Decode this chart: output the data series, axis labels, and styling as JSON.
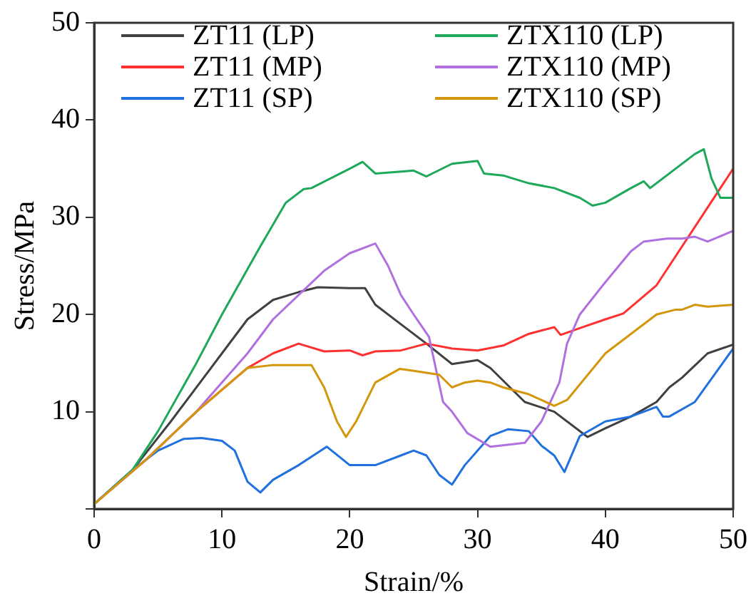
{
  "chart_data": {
    "type": "line",
    "xlabel": "Strain/%",
    "ylabel": "Stress/MPa",
    "xlim": [
      0,
      50
    ],
    "ylim": [
      0,
      50
    ],
    "xticks": [
      0,
      10,
      20,
      30,
      40,
      50
    ],
    "yticks": [
      {
        "value": 0,
        "label": null
      },
      10,
      20,
      30,
      40,
      50
    ],
    "grid": false,
    "legend": "top",
    "marker": "none",
    "line_style": "solid",
    "series": [
      {
        "name": "ZT11 (LP)",
        "color": "#404040",
        "x": [
          0,
          3,
          6,
          10,
          12,
          14,
          16,
          17.5,
          20,
          21.2,
          22,
          24,
          26,
          28,
          30,
          31,
          32,
          33.7,
          36,
          38.6,
          40,
          42,
          44,
          45,
          46,
          48,
          50
        ],
        "values": [
          0.5,
          4,
          9,
          16,
          19.5,
          21.5,
          22.3,
          22.8,
          22.7,
          22.7,
          21,
          19,
          17,
          14.9,
          15.3,
          14.5,
          13.2,
          11,
          10,
          7.4,
          8.3,
          9.5,
          11,
          12.5,
          13.5,
          16,
          16.9
        ]
      },
      {
        "name": "ZT11 (MP)",
        "color": "#ff3030",
        "x": [
          0,
          4,
          8,
          12,
          14,
          16,
          18,
          20,
          21,
          22,
          24,
          26,
          28,
          30,
          32,
          34,
          36,
          36.5,
          38,
          40,
          41.4,
          44,
          46,
          48,
          50
        ],
        "values": [
          0.5,
          5,
          10,
          14.5,
          16,
          17,
          16.2,
          16.3,
          15.8,
          16.2,
          16.3,
          17,
          16.5,
          16.3,
          16.8,
          18,
          18.7,
          17.9,
          18.6,
          19.5,
          20.1,
          23,
          27,
          31,
          35
        ]
      },
      {
        "name": "ZT11 (SP)",
        "color": "#2070e0",
        "x": [
          0,
          3,
          5,
          7,
          8.4,
          10,
          11,
          12,
          13,
          14,
          16,
          18.2,
          20,
          22,
          24,
          25,
          26,
          27,
          28,
          29,
          31,
          32.4,
          34,
          35,
          36,
          36.8,
          38,
          40,
          42,
          43,
          44,
          44.5,
          45,
          47,
          50
        ],
        "values": [
          0.5,
          4,
          6,
          7.2,
          7.3,
          7,
          6,
          2.8,
          1.7,
          3,
          4.5,
          6.4,
          4.5,
          4.5,
          5.5,
          6,
          5.5,
          3.5,
          2.5,
          4.5,
          7.5,
          8.2,
          8,
          6.5,
          5.5,
          3.8,
          7.5,
          9,
          9.5,
          10,
          10.5,
          9.5,
          9.5,
          11,
          16.5
        ]
      },
      {
        "name": "ZTX110 (LP)",
        "color": "#1ea85a",
        "x": [
          0,
          3,
          5,
          8,
          10,
          13,
          15,
          16.4,
          17,
          20,
          21,
          22,
          24,
          25,
          26,
          28,
          30,
          30.5,
          32,
          34,
          36,
          38,
          39,
          40,
          42,
          43,
          43.5,
          45,
          47,
          47.7,
          48.3,
          49,
          50
        ],
        "values": [
          0.5,
          4,
          8,
          15,
          20,
          27,
          31.5,
          32.9,
          33,
          35,
          35.7,
          34.5,
          34.7,
          34.8,
          34.2,
          35.5,
          35.8,
          34.5,
          34.3,
          33.5,
          33,
          32,
          31.2,
          31.5,
          33,
          33.7,
          33,
          34.5,
          36.5,
          37,
          34,
          32,
          32
        ]
      },
      {
        "name": "ZTX110 (MP)",
        "color": "#b070e0",
        "x": [
          0,
          4,
          8,
          12,
          14,
          16,
          18,
          20,
          22,
          23,
          24,
          25,
          26.2,
          27.3,
          28,
          29.2,
          31,
          33.7,
          35,
          36.4,
          37,
          38,
          39.8,
          42,
          43,
          44.8,
          46,
          47,
          48,
          50
        ],
        "values": [
          0.5,
          5,
          10,
          16,
          19.5,
          22,
          24.5,
          26.3,
          27.3,
          25,
          22,
          20,
          17.7,
          11,
          10,
          7.8,
          6.4,
          6.8,
          9,
          13,
          17,
          20,
          23,
          26.5,
          27.5,
          27.8,
          27.8,
          28,
          27.5,
          28.6
        ]
      },
      {
        "name": "ZTX110 (SP)",
        "color": "#d4960a",
        "x": [
          0,
          4,
          8,
          12,
          14,
          16,
          17,
          18,
          19,
          19.7,
          20.5,
          22,
          23.9,
          25,
          26,
          27,
          28,
          29,
          30,
          31,
          32,
          34,
          36,
          37,
          40,
          42,
          44,
          45.5,
          46,
          47,
          48,
          50
        ],
        "values": [
          0.5,
          5,
          10,
          14.5,
          14.8,
          14.8,
          14.8,
          12.5,
          9,
          7.4,
          9,
          13,
          14.4,
          14.2,
          14,
          13.8,
          12.5,
          13,
          13.2,
          13,
          12.5,
          11.8,
          10.6,
          11.2,
          16,
          18,
          20,
          20.5,
          20.5,
          21,
          20.8,
          21
        ]
      }
    ]
  }
}
